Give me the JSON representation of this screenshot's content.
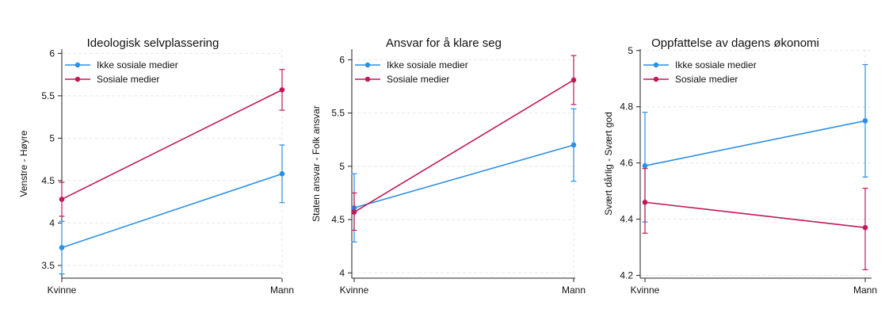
{
  "colors": {
    "ikke": "#2b8fe6",
    "sosiale": "#c2185b"
  },
  "chart_data": [
    {
      "type": "line",
      "title": "Ideologisk selvplassering",
      "ylabel": "Venstre - Høyre",
      "xlabel": "",
      "categories": [
        "Kvinne",
        "Mann"
      ],
      "ylim": [
        3.35,
        6.05
      ],
      "yticks": [
        3.5,
        4,
        4.5,
        5,
        5.5,
        6
      ],
      "ytick_labels": [
        "3.5",
        "4",
        "4.5",
        "5",
        "5.5",
        "6"
      ],
      "grid": true,
      "legend_position": "top-left",
      "series": [
        {
          "name": "Ikke sosiale medier",
          "color": "#2b8fe6",
          "values": [
            3.71,
            4.58
          ],
          "ci_low": [
            3.4,
            4.24
          ],
          "ci_high": [
            4.02,
            4.92
          ]
        },
        {
          "name": "Sosiale medier",
          "color": "#c2185b",
          "values": [
            4.28,
            5.57
          ],
          "ci_low": [
            4.08,
            5.33
          ],
          "ci_high": [
            4.48,
            5.81
          ]
        }
      ]
    },
    {
      "type": "line",
      "title": "Ansvar for å klare seg",
      "ylabel": "Staten ansvar - Folk ansvar",
      "xlabel": "",
      "categories": [
        "Kvinne",
        "Mann"
      ],
      "ylim": [
        3.95,
        6.1
      ],
      "yticks": [
        4,
        4.5,
        5,
        5.5,
        6
      ],
      "ytick_labels": [
        "4",
        "4.5",
        "5",
        "5.5",
        "6"
      ],
      "grid": true,
      "legend_position": "top-left",
      "series": [
        {
          "name": "Ikke sosiale medier",
          "color": "#2b8fe6",
          "values": [
            4.61,
            5.2
          ],
          "ci_low": [
            4.29,
            4.86
          ],
          "ci_high": [
            4.93,
            5.54
          ]
        },
        {
          "name": "Sosiale medier",
          "color": "#c2185b",
          "values": [
            4.57,
            5.81
          ],
          "ci_low": [
            4.4,
            5.58
          ],
          "ci_high": [
            4.75,
            6.04
          ]
        }
      ]
    },
    {
      "type": "line",
      "title": "Oppfattelse av dagens økonomi",
      "ylabel": "Svært dårlig - Svært god",
      "xlabel": "",
      "categories": [
        "Kvinne",
        "Mann"
      ],
      "ylim": [
        4.19,
        5.005
      ],
      "yticks": [
        4.2,
        4.4,
        4.6,
        4.8,
        5
      ],
      "ytick_labels": [
        "4.2",
        "4.4",
        "4.6",
        "4.8",
        "5"
      ],
      "grid": true,
      "legend_position": "top-left",
      "series": [
        {
          "name": "Ikke sosiale medier",
          "color": "#2b8fe6",
          "values": [
            4.59,
            4.75
          ],
          "ci_low": [
            4.39,
            4.55
          ],
          "ci_high": [
            4.78,
            4.95
          ]
        },
        {
          "name": "Sosiale medier",
          "color": "#c2185b",
          "values": [
            4.46,
            4.37
          ],
          "ci_low": [
            4.35,
            4.22
          ],
          "ci_high": [
            4.58,
            4.51
          ]
        }
      ]
    }
  ]
}
